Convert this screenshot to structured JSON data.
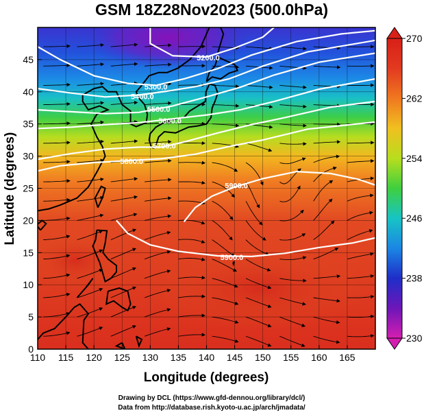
{
  "title": "GSM 18Z28Nov2023 (500.0hPa)",
  "xlabel": "Longitude (degrees)",
  "ylabel": "Latitude  (degrees)",
  "credits": [
    "Drawing by DCL (https://www.gfd-dennou.org/library/dcl/)",
    "Data from http://database.rish.kyoto-u.ac.jp/arch/jmadata/"
  ],
  "map": {
    "lon_range": [
      110,
      170
    ],
    "lat_range": [
      0,
      50
    ],
    "lon_ticks": [
      110,
      115,
      120,
      125,
      130,
      135,
      140,
      145,
      150,
      155,
      160,
      165
    ],
    "lon_tick_labels": [
      "110",
      "115",
      "120",
      "125",
      "130",
      "135",
      "140",
      "145",
      "150",
      "155",
      "160",
      "165"
    ],
    "lat_ticks": [
      0,
      5,
      10,
      15,
      20,
      25,
      30,
      35,
      40,
      45
    ],
    "lat_tick_labels": [
      "0",
      "5",
      "10",
      "15",
      "20",
      "25",
      "30",
      "35",
      "40",
      "45"
    ],
    "grid": true,
    "field": "temperature (K), shaded",
    "overlays": [
      "geopotential height contours (white)",
      "streamlines (black)",
      "coastlines (black)"
    ]
  },
  "colorbar": {
    "min": 230,
    "max": 270,
    "tick_values": [
      230,
      238,
      246,
      254,
      262,
      270
    ],
    "tick_labels": [
      "230",
      "238",
      "246",
      "254",
      "262",
      "270"
    ],
    "colors": [
      "#d51eb0",
      "#6d16b8",
      "#1f2ec8",
      "#1b86e4",
      "#17c4c4",
      "#3fcf3f",
      "#b8de1e",
      "#f0c020",
      "#f07820",
      "#e23a20",
      "#d82018"
    ]
  },
  "contours": [
    {
      "label": "5200.0",
      "value": 5200.0
    },
    {
      "label": "5300.0",
      "value": 5300.0
    },
    {
      "label": "5400.0",
      "value": 5400.0
    },
    {
      "label": "5500.0",
      "value": 5500.0
    },
    {
      "label": "5600.0",
      "value": 5600.0
    },
    {
      "label": "5700.0",
      "value": 5700.0
    },
    {
      "label": "5800.0",
      "value": 5800.0
    },
    {
      "label": "5900.0",
      "value": 5900.0
    }
  ]
}
